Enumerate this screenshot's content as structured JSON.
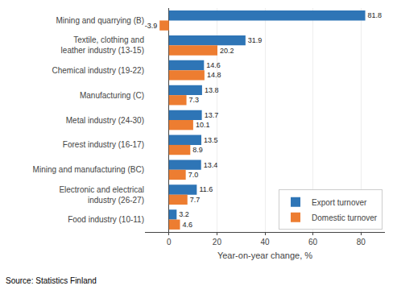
{
  "chart_data": {
    "type": "bar",
    "orientation": "horizontal",
    "categories": [
      "Mining and quarrying (B)",
      "Textile, clothing and\nleather industry (13-15)",
      "Chemical industry (19-22)",
      "Manufacturing (C)",
      "Metal industry (24-30)",
      "Forest industry (16-17)",
      "Mining and manufacturing (BC)",
      "Electronic and electrical\nindustry (26-27)",
      "Food industry (10-11)"
    ],
    "series": [
      {
        "name": "Export turnover",
        "color": "#2E75B6",
        "values": [
          81.8,
          31.9,
          14.6,
          13.8,
          13.7,
          13.5,
          13.4,
          11.6,
          3.2
        ]
      },
      {
        "name": "Domestic turnover",
        "color": "#ED7D31",
        "values": [
          -3.9,
          20.2,
          14.8,
          7.3,
          10.1,
          8.9,
          7.0,
          7.7,
          4.6
        ],
        "value_labels": [
          "-3.9",
          "20.2",
          "14.8",
          "7.3",
          "10.1",
          "8.9",
          "7.0",
          "7.7",
          "4.6"
        ]
      }
    ],
    "xlabel": "Year-on-year change, %",
    "xlim": [
      -10,
      90
    ],
    "xticks": [
      0,
      20,
      40,
      60,
      80
    ],
    "grid": true,
    "legend": "lower right",
    "data_labels": true,
    "annotations": [
      "Source: Statistics Finland"
    ]
  }
}
